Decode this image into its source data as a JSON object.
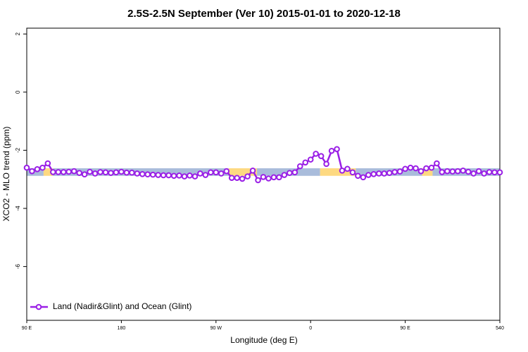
{
  "chart_data": {
    "type": "line",
    "title": "2.5S-2.5N September (Ver 10)   2015-01-01 to 2020-12-18",
    "x_label": "Longitude (deg E)",
    "y_label": "XCO2 - MLO trend (ppm)",
    "xlim": [
      90,
      540
    ],
    "xticks": [
      {
        "value": 90,
        "label": "90 E"
      },
      180,
      {
        "value": 270,
        "label": "90 W"
      },
      {
        "value": 360,
        "label": "0"
      },
      {
        "value": 450,
        "label": "90 E"
      },
      540
    ],
    "ylim": [
      -7.85,
      2.2
    ],
    "yticks": [
      2,
      0,
      -2,
      -4,
      -6
    ],
    "legend_position": "bottom-left",
    "band_ylim": [
      -2.88,
      -2.62
    ],
    "bands": [
      {
        "x0": 90,
        "x1": 106,
        "color": "#a9bcdb"
      },
      {
        "x0": 106,
        "x1": 115,
        "color": "#fdd981"
      },
      {
        "x0": 115,
        "x1": 282,
        "color": "#a9bcdb"
      },
      {
        "x0": 282,
        "x1": 309,
        "color": "#fdd981"
      },
      {
        "x0": 309,
        "x1": 369,
        "color": "#a9bcdb"
      },
      {
        "x0": 369,
        "x1": 403,
        "color": "#fdd981"
      },
      {
        "x0": 403,
        "x1": 466,
        "color": "#a9bcdb"
      },
      {
        "x0": 466,
        "x1": 476,
        "color": "#fdd981"
      },
      {
        "x0": 476,
        "x1": 540,
        "color": "#a9bcdb"
      }
    ],
    "x": [
      90,
      95,
      100,
      105,
      110,
      115,
      120,
      125,
      130,
      135,
      140,
      145,
      150,
      155,
      160,
      165,
      170,
      175,
      180,
      185,
      190,
      195,
      200,
      205,
      210,
      215,
      220,
      225,
      230,
      235,
      240,
      245,
      250,
      255,
      260,
      265,
      270,
      275,
      280,
      285,
      290,
      295,
      300,
      305,
      310,
      315,
      320,
      325,
      330,
      335,
      340,
      345,
      350,
      355,
      360,
      365,
      370,
      375,
      380,
      385,
      390,
      395,
      400,
      405,
      410,
      415,
      420,
      425,
      430,
      435,
      440,
      445,
      450,
      455,
      460,
      465,
      470,
      475,
      480,
      485,
      490,
      495,
      500,
      505,
      510,
      515,
      520,
      525,
      530,
      535,
      540
    ],
    "series": [
      {
        "name": "Land (Nadir&Glint) and Ocean (Glint)",
        "color": "#9a1fe6",
        "values": [
          -2.6,
          -2.72,
          -2.65,
          -2.6,
          -2.45,
          -2.75,
          -2.75,
          -2.75,
          -2.74,
          -2.72,
          -2.78,
          -2.83,
          -2.74,
          -2.8,
          -2.75,
          -2.76,
          -2.78,
          -2.76,
          -2.74,
          -2.77,
          -2.77,
          -2.8,
          -2.82,
          -2.83,
          -2.84,
          -2.85,
          -2.86,
          -2.86,
          -2.88,
          -2.87,
          -2.9,
          -2.87,
          -2.9,
          -2.8,
          -2.85,
          -2.76,
          -2.76,
          -2.8,
          -2.72,
          -2.95,
          -2.95,
          -2.98,
          -2.9,
          -2.7,
          -3.03,
          -2.92,
          -2.97,
          -2.93,
          -2.93,
          -2.85,
          -2.78,
          -2.76,
          -2.55,
          -2.42,
          -2.32,
          -2.12,
          -2.2,
          -2.47,
          -2.02,
          -1.96,
          -2.7,
          -2.64,
          -2.76,
          -2.88,
          -2.93,
          -2.85,
          -2.82,
          -2.8,
          -2.8,
          -2.78,
          -2.75,
          -2.73,
          -2.64,
          -2.6,
          -2.62,
          -2.72,
          -2.62,
          -2.6,
          -2.45,
          -2.75,
          -2.72,
          -2.73,
          -2.72,
          -2.7,
          -2.74,
          -2.8,
          -2.72,
          -2.8,
          -2.75,
          -2.76,
          -2.76
        ]
      }
    ]
  }
}
